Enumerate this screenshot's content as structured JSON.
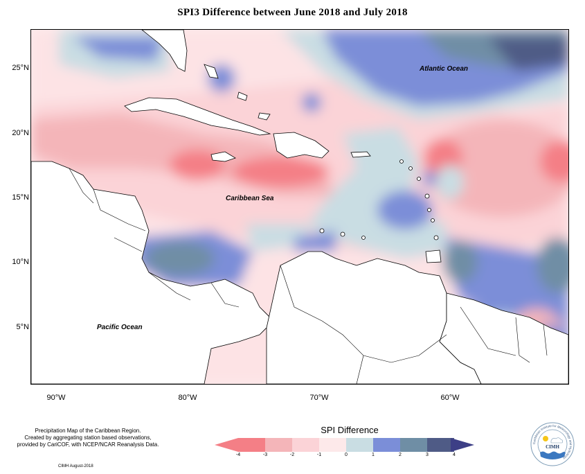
{
  "title": "SPI3 Difference between June 2018 and July 2018",
  "map": {
    "lat_labels": [
      "25°N",
      "20°N",
      "15°N",
      "10°N",
      "5°N"
    ],
    "lon_labels": [
      "90°W",
      "80°W",
      "70°W",
      "60°W"
    ],
    "ocean_labels": {
      "atlantic": "Atlantic Ocean",
      "caribbean": "Caribbean Sea",
      "pacific": "Pacific Ocean"
    }
  },
  "note_lines": [
    "Precipitation Map of the Caribbean Region.",
    "Created by aggregating station based observations,",
    "provided by CariCOF, with NCEP/NCAR Reanalysis Data."
  ],
  "legend": {
    "title": "SPI Difference",
    "ticks": [
      "-4",
      "-3",
      "-2",
      "-1",
      "0",
      "1",
      "2",
      "3",
      "4"
    ],
    "colors": [
      "#f47f86",
      "#f4b5b9",
      "#fbd3d7",
      "#fde9ea",
      "#c9dde3",
      "#7b8ed8",
      "#6f8ea5",
      "#4f5b86"
    ],
    "arrow_left_color": "#f47f86",
    "arrow_right_color": "#3d3f86"
  },
  "logo": {
    "name": "CIMH",
    "ring_text": "Caribbean Institute for Meteorology and Hydrology"
  },
  "credit": "CIMH August-2018"
}
